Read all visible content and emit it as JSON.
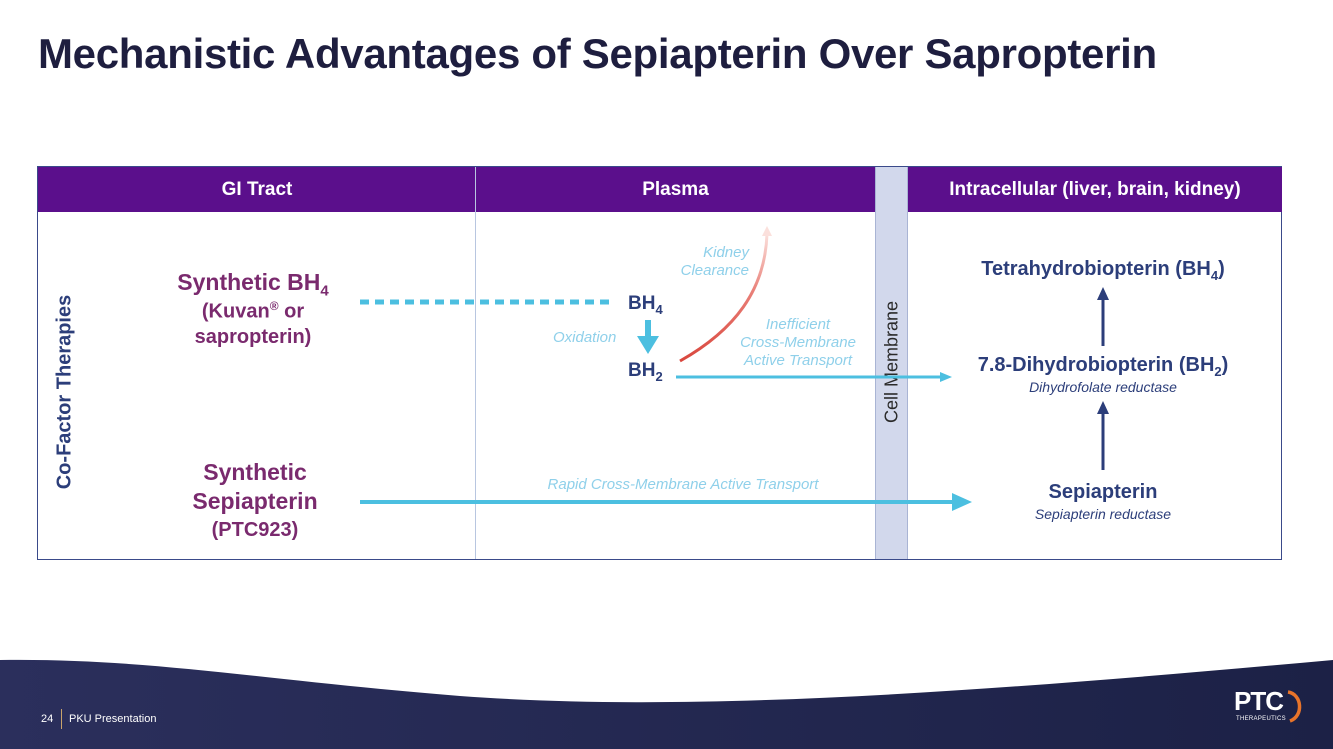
{
  "title": "Mechanistic Advantages of Sepiapterin Over Sapropterin",
  "headers": {
    "gi": "GI Tract",
    "plasma": "Plasma",
    "intracellular": "Intracellular (liver, brain, kidney)"
  },
  "row_label": "Co-Factor Therapies",
  "membrane_label": "Cell Membrane",
  "therapies": {
    "kuvan": {
      "line1": "Synthetic BH",
      "line1_sub": "4",
      "line2": "(Kuvan",
      "line2_sup": "®",
      "line2_end": " or",
      "line3": "sapropterin)"
    },
    "sepiapterin": {
      "line1": "Synthetic",
      "line2": "Sepiapterin",
      "line3": "(PTC923)"
    }
  },
  "plasma": {
    "bh4": "BH",
    "bh4_sub": "4",
    "bh2": "BH",
    "bh2_sub": "2",
    "oxidation": "Oxidation",
    "kidney_line1": "Kidney",
    "kidney_line2": "Clearance",
    "inefficient_line1": "Inefficient",
    "inefficient_line2": "Cross-Membrane",
    "inefficient_line3": "Active Transport",
    "rapid": "Rapid Cross-Membrane Active Transport"
  },
  "intracellular": {
    "tetra": "Tetrahydrobiopterin (BH",
    "tetra_sub": "4",
    "tetra_end": ")",
    "dihydro": "7.8-Dihydrobiopterin (BH",
    "dihydro_sub": "2",
    "dihydro_end": ")",
    "dihydro_enzyme": "Dihydrofolate reductase",
    "sepi": "Sepiapterin",
    "sepi_enzyme": "Sepiapterin reductase"
  },
  "footer": {
    "page": "24",
    "text": "PKU Presentation"
  },
  "logo": {
    "text": "PTC",
    "sub": "THERAPEUTICS"
  },
  "colors": {
    "header_bg": "#5b0f8c",
    "navy": "#2c3e7a",
    "purple_text": "#7a2a6e",
    "arrow_blue": "#4cbfe0",
    "label_lightblue": "#8fd0ea",
    "kidney_red": "#d9473e",
    "footer_bg": "#232b52"
  }
}
